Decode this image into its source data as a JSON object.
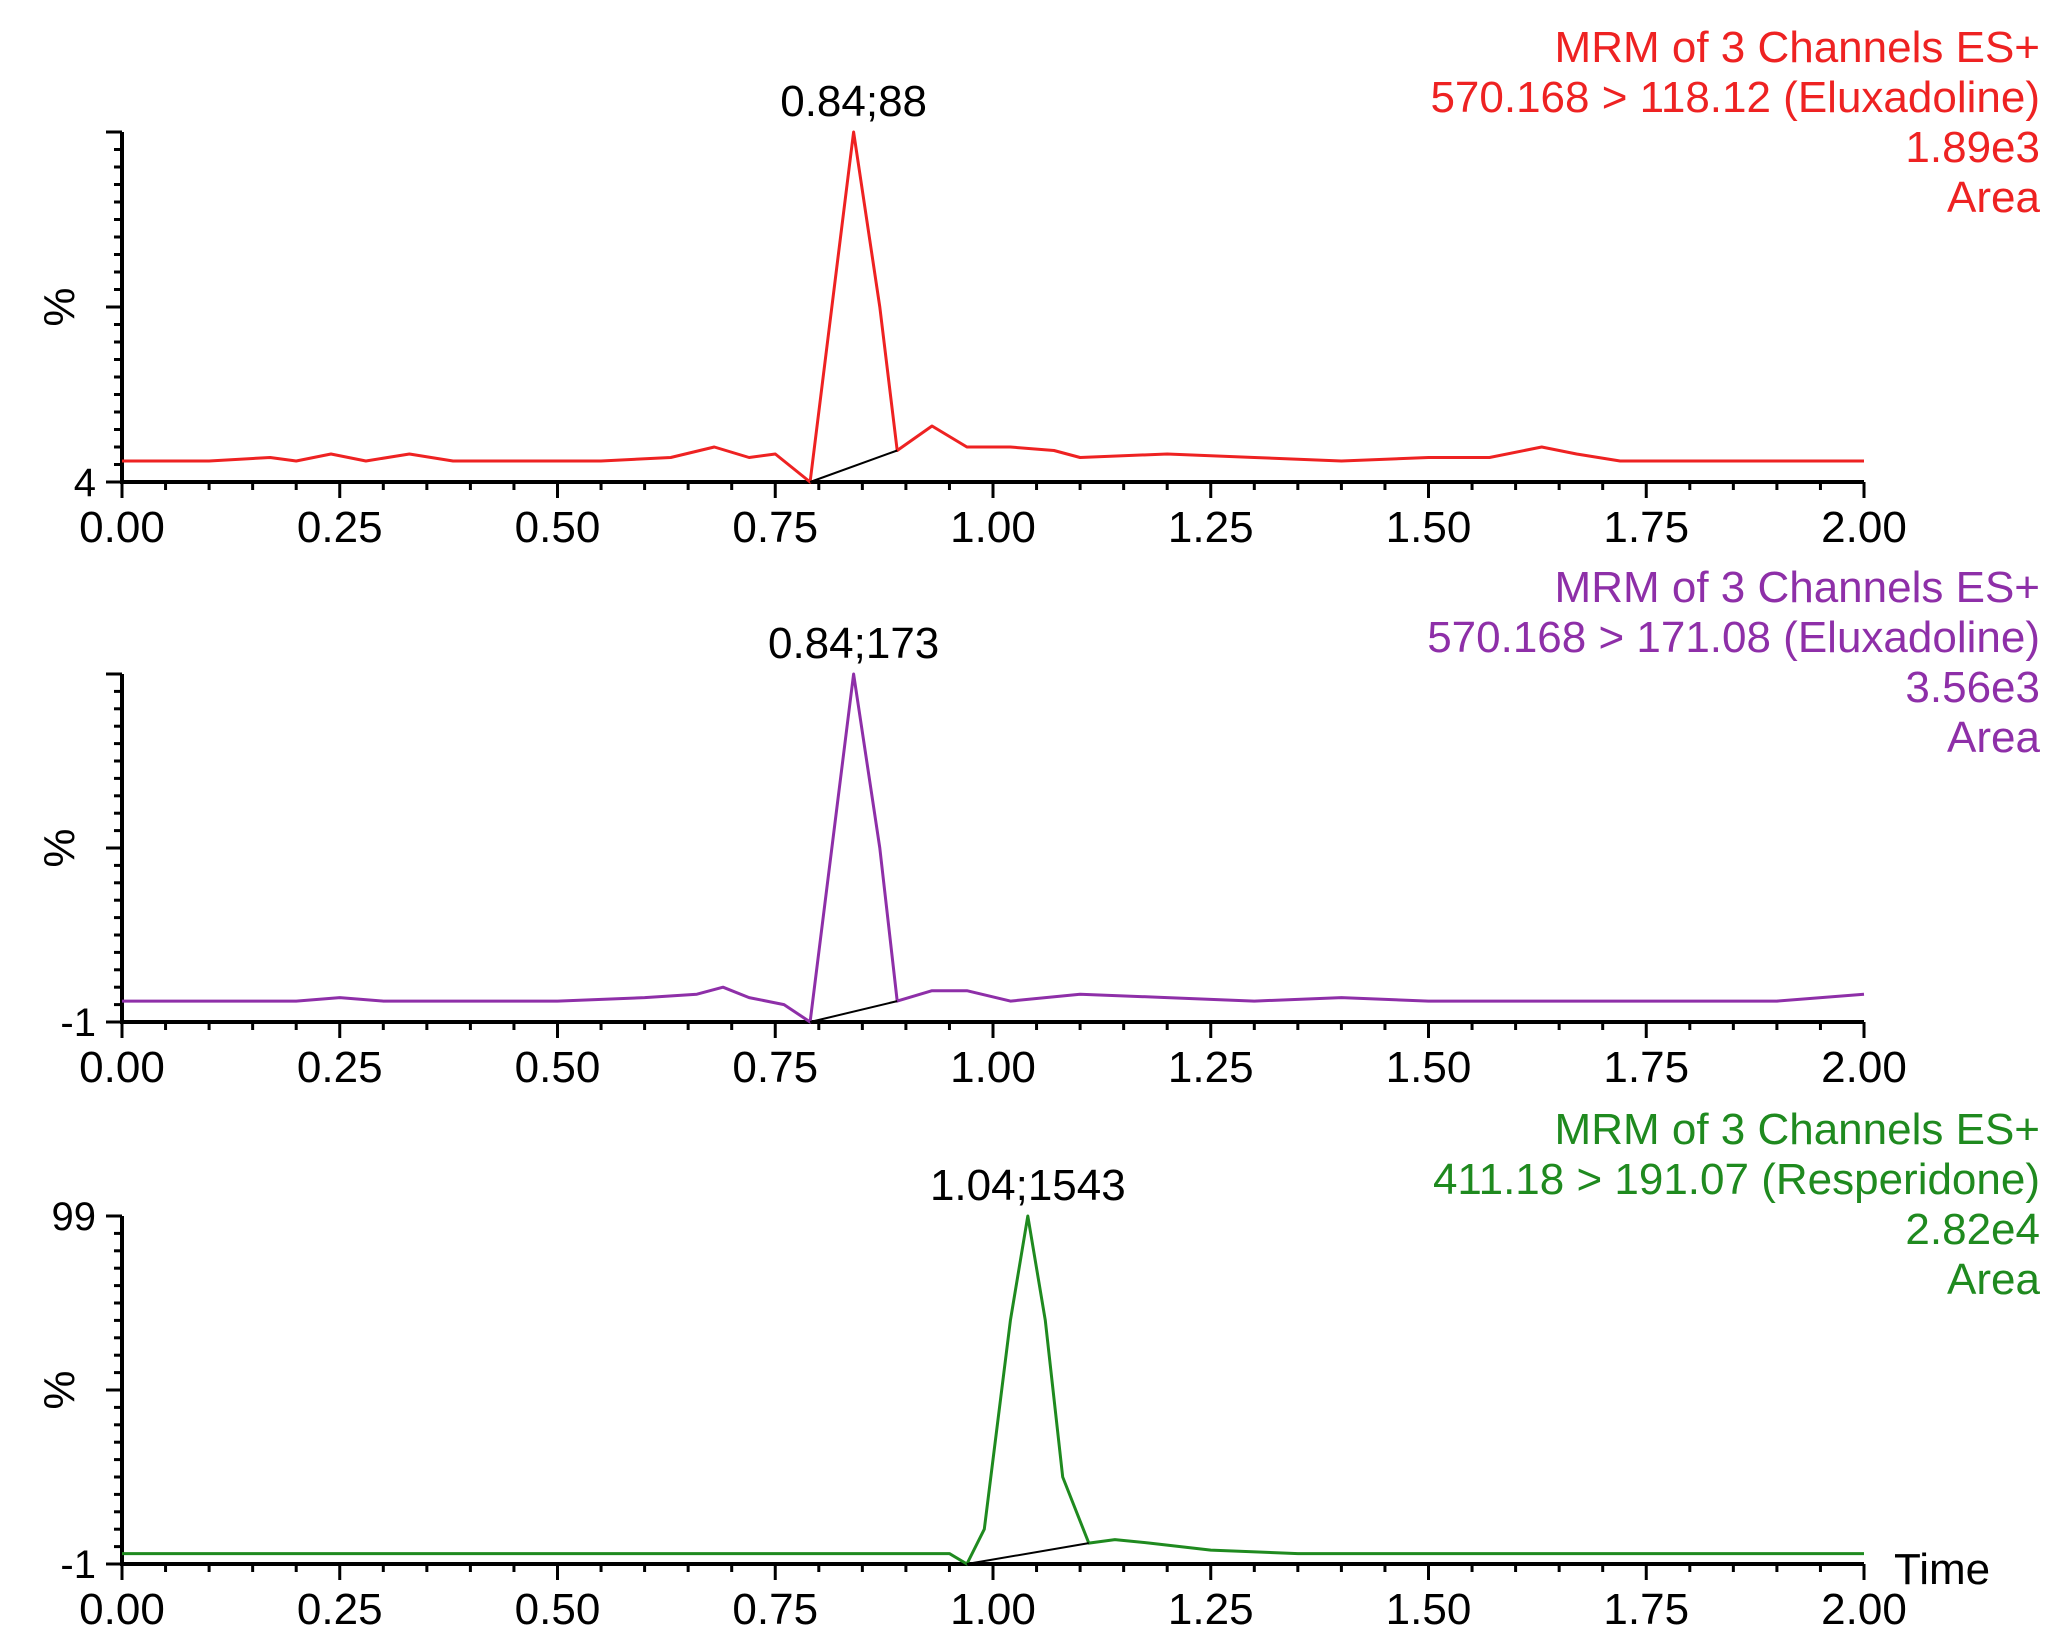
{
  "chart_data": [
    {
      "type": "line",
      "color": "#ee2222",
      "header": [
        "MRM of 3 Channels ES+",
        "570.168 > 118.12 (Eluxadoline)",
        "1.89e3",
        "Area"
      ],
      "peak_label": "0.84;88",
      "ylabel": "%",
      "ymin_label": "4",
      "ymax_label": "",
      "xlabel": "",
      "xlim": [
        0,
        2
      ],
      "ylim": [
        0,
        100
      ],
      "x_ticks": [
        "0.00",
        "0.25",
        "0.50",
        "0.75",
        "1.00",
        "1.25",
        "1.50",
        "1.75",
        "2.00"
      ],
      "integration_baseline": [
        [
          0.79,
          0
        ],
        [
          0.89,
          9
        ]
      ],
      "x": [
        0.0,
        0.1,
        0.17,
        0.2,
        0.24,
        0.28,
        0.33,
        0.38,
        0.45,
        0.55,
        0.63,
        0.68,
        0.72,
        0.75,
        0.77,
        0.79,
        0.81,
        0.84,
        0.87,
        0.89,
        0.93,
        0.97,
        1.02,
        1.07,
        1.1,
        1.2,
        1.3,
        1.4,
        1.5,
        1.57,
        1.63,
        1.67,
        1.72,
        1.8,
        1.9,
        2.0
      ],
      "y": [
        6,
        6,
        7,
        6,
        8,
        6,
        8,
        6,
        6,
        6,
        7,
        10,
        7,
        8,
        4,
        0,
        40,
        100,
        50,
        9,
        16,
        10,
        10,
        9,
        7,
        8,
        7,
        6,
        7,
        7,
        10,
        8,
        6,
        6,
        6,
        6
      ]
    },
    {
      "type": "line",
      "color": "#8e2fa8",
      "header": [
        "MRM of 3 Channels ES+",
        "570.168 > 171.08 (Eluxadoline)",
        "3.56e3",
        "Area"
      ],
      "peak_label": "0.84;173",
      "ylabel": "%",
      "ymin_label": "-1",
      "ymax_label": "",
      "xlabel": "",
      "xlim": [
        0,
        2
      ],
      "ylim": [
        0,
        100
      ],
      "x_ticks": [
        "0.00",
        "0.25",
        "0.50",
        "0.75",
        "1.00",
        "1.25",
        "1.50",
        "1.75",
        "2.00"
      ],
      "integration_baseline": [
        [
          0.79,
          0
        ],
        [
          0.89,
          6
        ]
      ],
      "x": [
        0.0,
        0.1,
        0.2,
        0.25,
        0.3,
        0.4,
        0.5,
        0.6,
        0.66,
        0.69,
        0.72,
        0.76,
        0.79,
        0.81,
        0.84,
        0.87,
        0.89,
        0.93,
        0.97,
        1.02,
        1.1,
        1.2,
        1.3,
        1.4,
        1.5,
        1.6,
        1.7,
        1.8,
        1.9,
        2.0
      ],
      "y": [
        6,
        6,
        6,
        7,
        6,
        6,
        6,
        7,
        8,
        10,
        7,
        5,
        0,
        40,
        100,
        50,
        6,
        9,
        9,
        6,
        8,
        7,
        6,
        7,
        6,
        6,
        6,
        6,
        6,
        8
      ]
    },
    {
      "type": "line",
      "color": "#1f8a1f",
      "header": [
        "MRM of 3 Channels ES+",
        "411.18 > 191.07 (Resperidone)",
        "2.82e4",
        "Area"
      ],
      "peak_label": "1.04;1543",
      "ylabel": "%",
      "ymin_label": "-1",
      "ymax_label": "99",
      "xlabel": "Time",
      "xlim": [
        0,
        2
      ],
      "ylim": [
        0,
        100
      ],
      "x_ticks": [
        "0.00",
        "0.25",
        "0.50",
        "0.75",
        "1.00",
        "1.25",
        "1.50",
        "1.75",
        "2.00"
      ],
      "integration_baseline": [
        [
          0.97,
          0
        ],
        [
          1.11,
          6
        ]
      ],
      "x": [
        0.0,
        0.5,
        0.9,
        0.95,
        0.97,
        0.99,
        1.02,
        1.04,
        1.06,
        1.08,
        1.11,
        1.14,
        1.18,
        1.25,
        1.35,
        1.5,
        2.0
      ],
      "y": [
        3,
        3,
        3,
        3,
        0,
        10,
        70,
        100,
        70,
        25,
        6,
        7,
        6,
        4,
        3,
        3,
        3
      ]
    }
  ]
}
